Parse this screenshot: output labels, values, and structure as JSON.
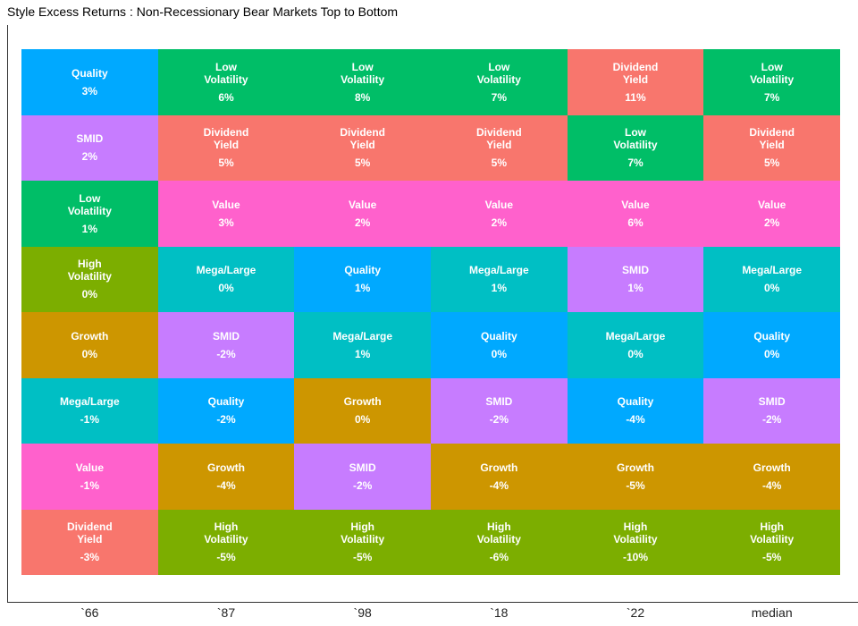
{
  "chart_data": {
    "type": "tile",
    "title": "Style Excess Returns : Non-Recessionary Bear Markets Top to Bottom",
    "categories": [
      "`66",
      "`87",
      "`98",
      "`18",
      "`22",
      "median"
    ],
    "colors": {
      "Quality": "#00a9ff",
      "Low Volatility": "#00be67",
      "Dividend Yield": "#f8766d",
      "SMID": "#c77cff",
      "Value": "#ff61cc",
      "High Volatility": "#7cae00",
      "Growth": "#cd9600",
      "Mega/Large": "#00bfc4"
    },
    "columns": [
      {
        "names": [
          "Quality",
          "SMID",
          "Low Volatility",
          "High Volatility",
          "Growth",
          "Mega/Large",
          "Value",
          "Dividend Yield"
        ],
        "values": [
          3,
          2,
          1,
          0,
          0,
          -1,
          -1,
          -3
        ],
        "value_labels": [
          "3%",
          "2%",
          "1%",
          "0%",
          "0%",
          "-1%",
          "-1%",
          "-3%"
        ]
      },
      {
        "names": [
          "Low Volatility",
          "Dividend Yield",
          "Value",
          "Mega/Large",
          "SMID",
          "Quality",
          "Growth",
          "High Volatility"
        ],
        "values": [
          6,
          5,
          3,
          0,
          -2,
          -2,
          -4,
          -5
        ],
        "value_labels": [
          "6%",
          "5%",
          "3%",
          "0%",
          "-2%",
          "-2%",
          "-4%",
          "-5%"
        ]
      },
      {
        "names": [
          "Low Volatility",
          "Dividend Yield",
          "Value",
          "Quality",
          "Mega/Large",
          "Growth",
          "SMID",
          "High Volatility"
        ],
        "values": [
          8,
          5,
          2,
          1,
          1,
          0,
          -2,
          -5
        ],
        "value_labels": [
          "8%",
          "5%",
          "2%",
          "1%",
          "1%",
          "0%",
          "-2%",
          "-5%"
        ]
      },
      {
        "names": [
          "Low Volatility",
          "Dividend Yield",
          "Value",
          "Mega/Large",
          "Quality",
          "SMID",
          "Growth",
          "High Volatility"
        ],
        "values": [
          7,
          5,
          2,
          1,
          0,
          -2,
          -4,
          -6
        ],
        "value_labels": [
          "7%",
          "5%",
          "2%",
          "1%",
          "0%",
          "-2%",
          "-4%",
          "-6%"
        ]
      },
      {
        "names": [
          "Dividend Yield",
          "Low Volatility",
          "Value",
          "SMID",
          "Mega/Large",
          "Quality",
          "Growth",
          "High Volatility"
        ],
        "values": [
          11,
          7,
          6,
          1,
          0,
          -4,
          -5,
          -10
        ],
        "value_labels": [
          "11%",
          "7%",
          "6%",
          "1%",
          "0%",
          "-4%",
          "-5%",
          "-10%"
        ]
      },
      {
        "names": [
          "Low Volatility",
          "Dividend Yield",
          "Value",
          "Mega/Large",
          "Quality",
          "SMID",
          "Growth",
          "High Volatility"
        ],
        "values": [
          7,
          5,
          2,
          0,
          0,
          -2,
          -4,
          -5
        ],
        "value_labels": [
          "7%",
          "5%",
          "2%",
          "0%",
          "0%",
          "-2%",
          "-4%",
          "-5%"
        ]
      }
    ]
  }
}
